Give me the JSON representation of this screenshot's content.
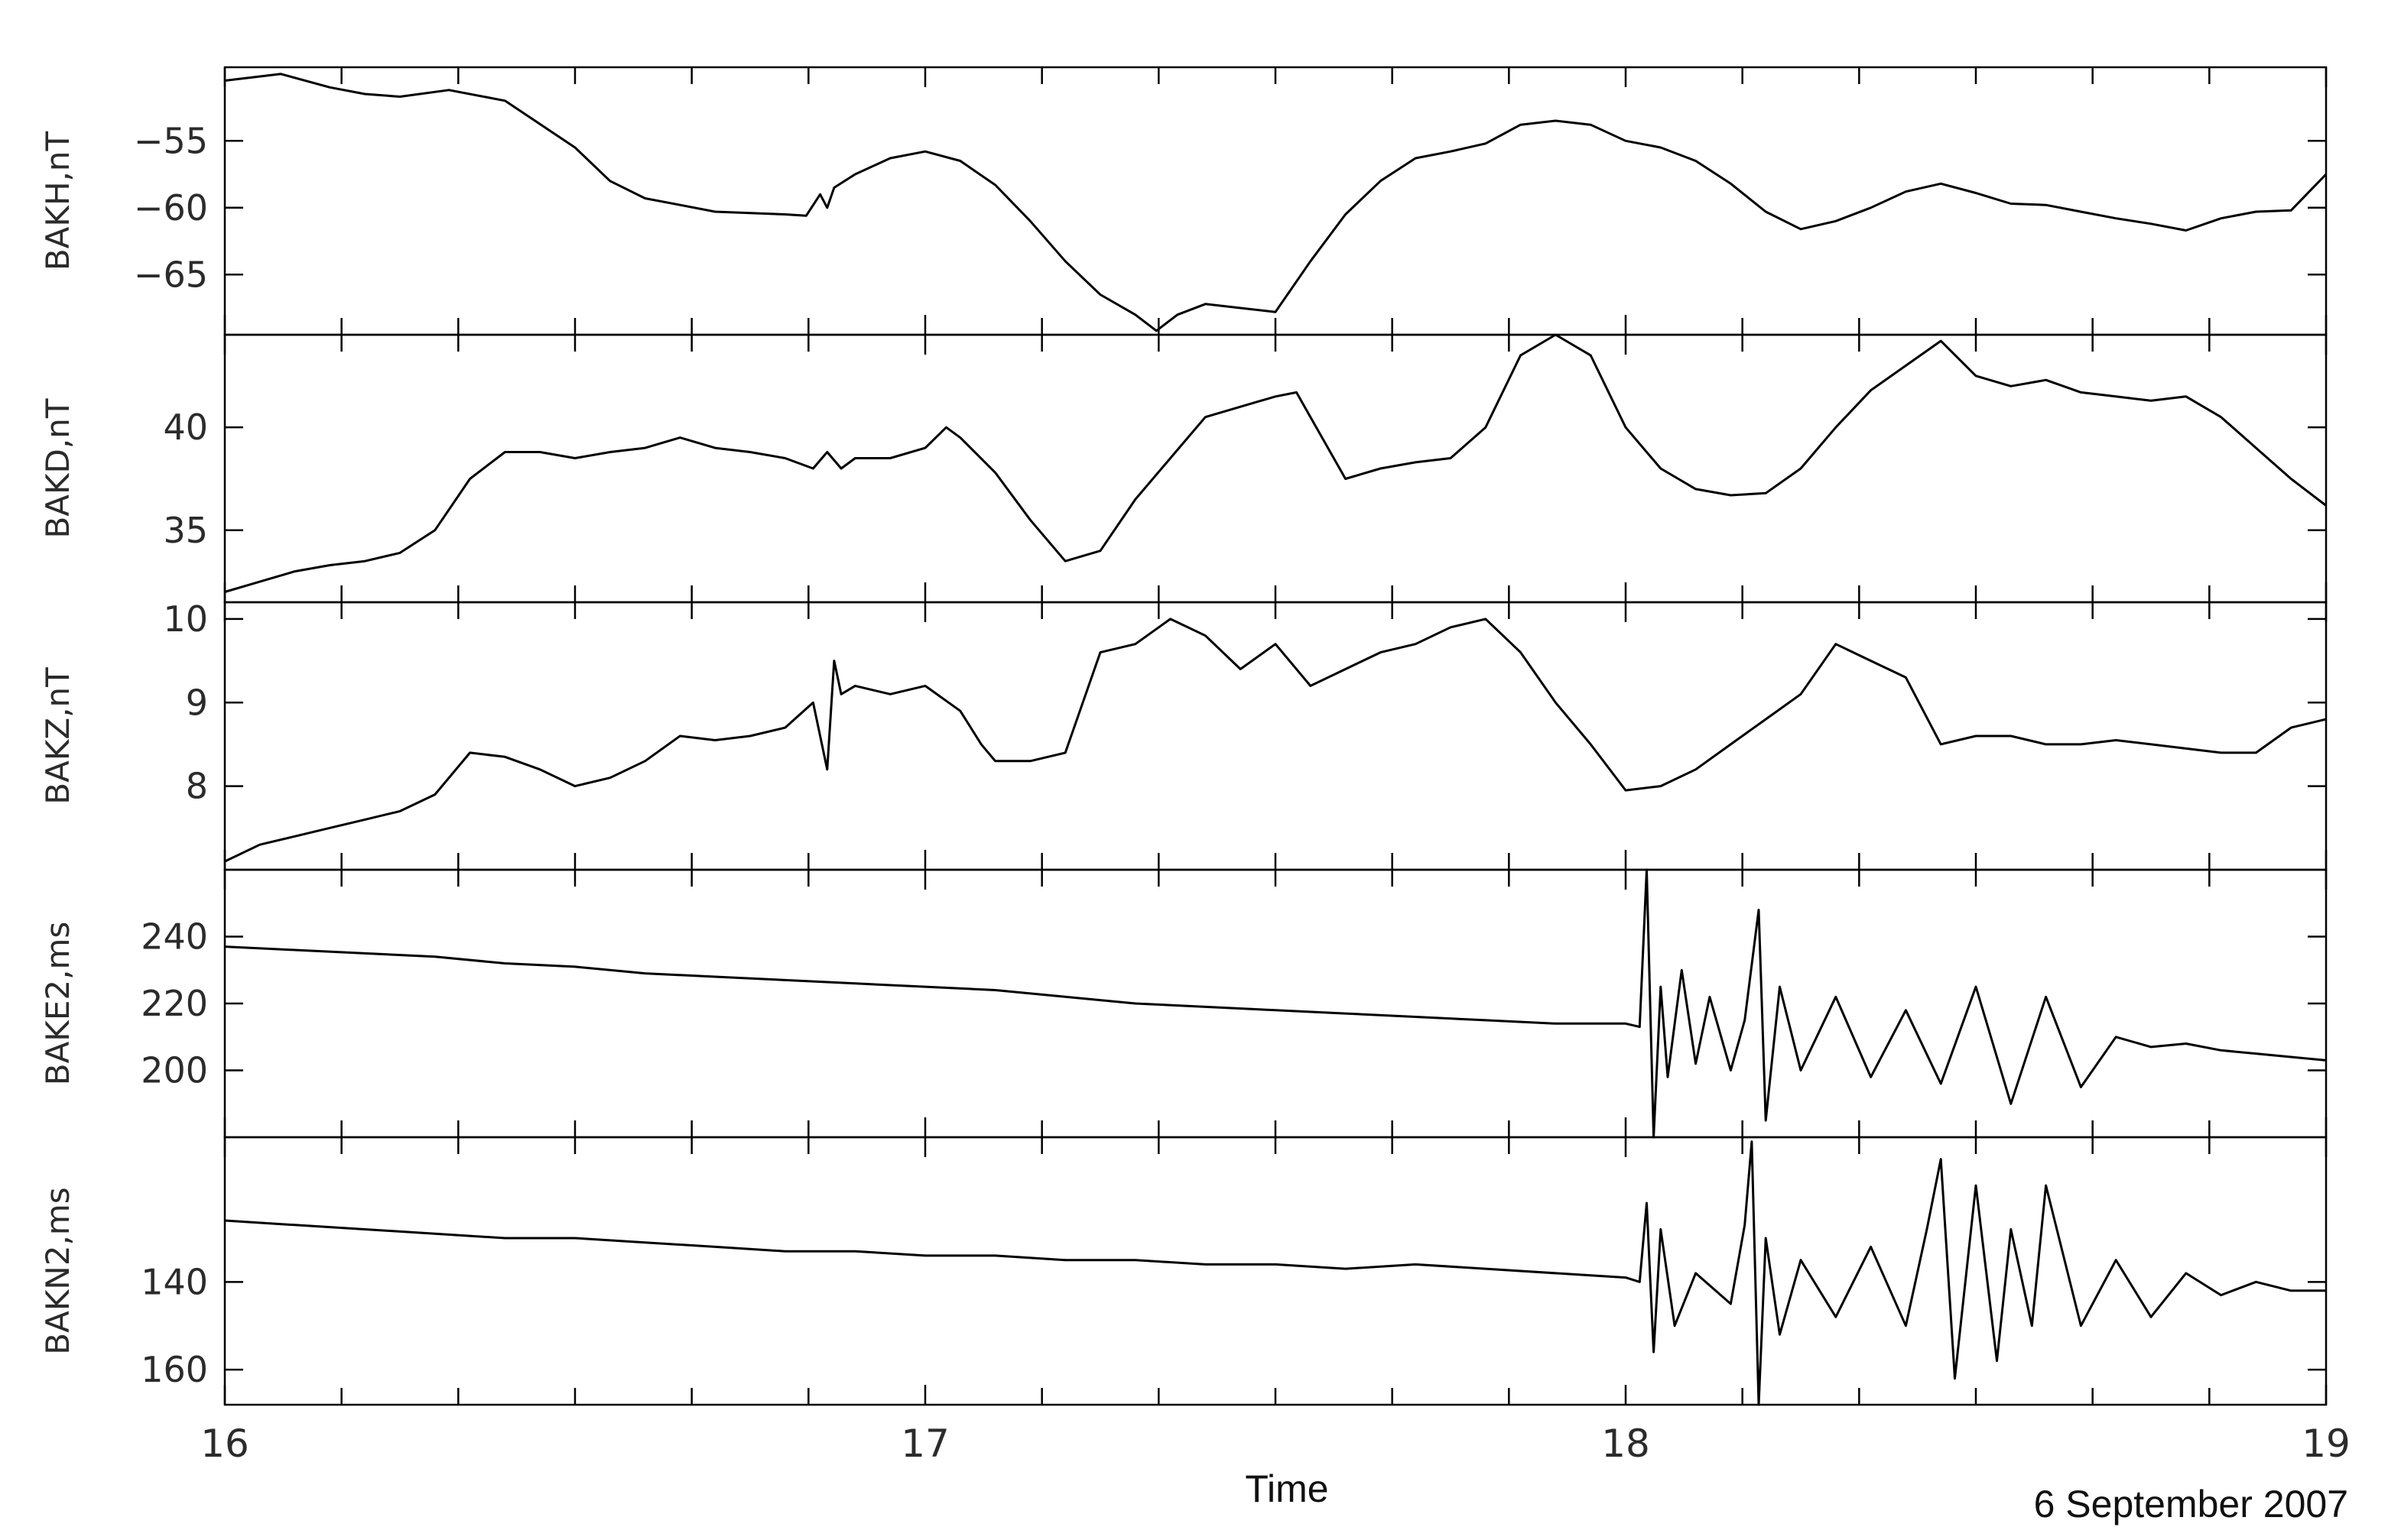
{
  "chart_data": {
    "type": "line",
    "date": "6 September 2007",
    "xlabel": "Time",
    "xlim": [
      16,
      19
    ],
    "xticks": [
      "16",
      "17",
      "18",
      "19"
    ],
    "grid": false,
    "line_color": "#000000",
    "panels": [
      {
        "ylabel": "BAKH,nT",
        "ylim": [
          -69.5,
          -49.5
        ],
        "yticks": [
          -55,
          -60,
          -65
        ],
        "ytick_labels": [
          "−55",
          "−60",
          "−65"
        ],
        "series": [
          {
            "x": [
              16.0,
              16.08,
              16.15,
              16.2,
              16.25,
              16.32,
              16.4,
              16.5,
              16.55,
              16.6,
              16.65,
              16.7,
              16.75,
              16.8,
              16.83,
              16.85,
              16.86,
              16.87,
              16.9,
              16.95,
              17.0,
              17.05,
              17.1,
              17.15,
              17.2,
              17.25,
              17.3,
              17.33,
              17.36,
              17.4,
              17.45,
              17.5,
              17.55,
              17.6,
              17.65,
              17.7,
              17.75,
              17.8,
              17.85,
              17.9,
              17.95,
              18.0,
              18.05,
              18.1,
              18.15,
              18.2,
              18.25,
              18.3,
              18.35,
              18.4,
              18.45,
              18.5,
              18.55,
              18.6,
              18.65,
              18.7,
              18.75,
              18.8,
              18.85,
              18.9,
              18.95,
              19.0
            ],
            "y": [
              -50.5,
              -50.0,
              -51.0,
              -51.5,
              -51.7,
              -51.2,
              -52.0,
              -55.5,
              -58.0,
              -59.3,
              -59.8,
              -60.3,
              -60.4,
              -60.5,
              -60.6,
              -59.0,
              -60.0,
              -58.5,
              -57.5,
              -56.3,
              -55.8,
              -56.5,
              -58.3,
              -61.0,
              -64.0,
              -66.5,
              -68.0,
              -69.2,
              -68.0,
              -67.2,
              -67.5,
              -67.8,
              -64.0,
              -60.5,
              -58.0,
              -56.3,
              -55.8,
              -55.2,
              -53.8,
              -53.5,
              -53.8,
              -55.0,
              -55.5,
              -56.5,
              -58.2,
              -60.3,
              -61.6,
              -61.0,
              -60.0,
              -58.8,
              -58.2,
              -58.9,
              -59.7,
              -59.8,
              -60.3,
              -60.8,
              -61.2,
              -61.7,
              -60.8,
              -60.3,
              -60.2,
              -57.5
            ]
          }
        ]
      },
      {
        "ylabel": "BAKD,nT",
        "ylim": [
          31.5,
          44.5
        ],
        "yticks": [
          40,
          35
        ],
        "ytick_labels": [
          "40",
          "35"
        ],
        "series": [
          {
            "x": [
              16.0,
              16.05,
              16.1,
              16.15,
              16.2,
              16.25,
              16.3,
              16.35,
              16.4,
              16.45,
              16.5,
              16.55,
              16.6,
              16.65,
              16.7,
              16.75,
              16.8,
              16.84,
              16.86,
              16.88,
              16.9,
              16.95,
              17.0,
              17.03,
              17.05,
              17.1,
              17.15,
              17.2,
              17.25,
              17.3,
              17.35,
              17.4,
              17.45,
              17.5,
              17.53,
              17.55,
              17.6,
              17.65,
              17.7,
              17.75,
              17.8,
              17.85,
              17.9,
              17.95,
              18.0,
              18.05,
              18.1,
              18.15,
              18.2,
              18.25,
              18.3,
              18.35,
              18.4,
              18.45,
              18.5,
              18.55,
              18.6,
              18.65,
              18.7,
              18.75,
              18.8,
              18.85,
              18.9,
              18.95,
              19.0
            ],
            "y": [
              32.0,
              32.5,
              33.0,
              33.3,
              33.5,
              33.9,
              35.0,
              37.5,
              38.8,
              38.8,
              38.5,
              38.8,
              39.0,
              39.5,
              39.0,
              38.8,
              38.5,
              38.0,
              38.8,
              38.0,
              38.5,
              38.5,
              39.0,
              40.0,
              39.5,
              37.8,
              35.5,
              33.5,
              34.0,
              36.5,
              38.5,
              40.5,
              41.0,
              41.5,
              41.7,
              40.5,
              37.5,
              38.0,
              38.3,
              38.5,
              40.0,
              43.5,
              44.5,
              43.5,
              40.0,
              38.0,
              37.0,
              36.7,
              36.8,
              38.0,
              40.0,
              41.8,
              43.0,
              44.2,
              42.5,
              42.0,
              42.3,
              41.7,
              41.5,
              41.3,
              41.5,
              40.5,
              39.0,
              37.5,
              36.2
            ]
          }
        ]
      },
      {
        "ylabel": "BAKZ,nT",
        "ylim": [
          7.0,
          10.2
        ],
        "yticks": [
          10,
          9,
          8
        ],
        "ytick_labels": [
          "10",
          "9",
          "8"
        ],
        "series": [
          {
            "x": [
              16.0,
              16.05,
              16.1,
              16.15,
              16.2,
              16.25,
              16.3,
              16.35,
              16.4,
              16.45,
              16.5,
              16.55,
              16.6,
              16.65,
              16.7,
              16.75,
              16.8,
              16.84,
              16.86,
              16.87,
              16.88,
              16.9,
              16.95,
              17.0,
              17.05,
              17.08,
              17.1,
              17.15,
              17.2,
              17.25,
              17.3,
              17.35,
              17.4,
              17.45,
              17.5,
              17.55,
              17.6,
              17.65,
              17.7,
              17.75,
              17.8,
              17.85,
              17.9,
              17.95,
              18.0,
              18.05,
              18.1,
              18.15,
              18.2,
              18.25,
              18.3,
              18.35,
              18.4,
              18.45,
              18.5,
              18.55,
              18.6,
              18.65,
              18.7,
              18.75,
              18.8,
              18.85,
              18.9,
              18.95,
              19.0
            ],
            "y": [
              7.1,
              7.3,
              7.4,
              7.5,
              7.6,
              7.7,
              7.9,
              8.4,
              8.35,
              8.2,
              8.0,
              8.1,
              8.3,
              8.6,
              8.55,
              8.6,
              8.7,
              9.0,
              8.2,
              9.5,
              9.1,
              9.2,
              9.1,
              9.2,
              8.9,
              8.5,
              8.3,
              8.3,
              8.4,
              9.6,
              9.7,
              10.0,
              9.8,
              9.4,
              9.7,
              9.2,
              9.4,
              9.6,
              9.7,
              9.9,
              10.0,
              9.6,
              9.0,
              8.5,
              7.95,
              8.0,
              8.2,
              8.5,
              8.8,
              9.1,
              9.7,
              9.5,
              9.3,
              8.5,
              8.6,
              8.6,
              8.5,
              8.5,
              8.55,
              8.5,
              8.45,
              8.4,
              8.4,
              8.7,
              8.8
            ]
          }
        ]
      },
      {
        "ylabel": "BAKE2,ms",
        "ylim": [
          180,
          260
        ],
        "yticks": [
          240,
          220,
          200
        ],
        "ytick_labels": [
          "240",
          "220",
          "200"
        ],
        "series": [
          {
            "x": [
              16.0,
              16.1,
              16.2,
              16.3,
              16.4,
              16.5,
              16.6,
              16.7,
              16.8,
              16.9,
              17.0,
              17.1,
              17.2,
              17.3,
              17.4,
              17.5,
              17.6,
              17.7,
              17.8,
              17.9,
              18.0,
              18.02,
              18.03,
              18.04,
              18.05,
              18.06,
              18.08,
              18.1,
              18.12,
              18.15,
              18.17,
              18.19,
              18.2,
              18.22,
              18.25,
              18.3,
              18.35,
              18.4,
              18.45,
              18.5,
              18.55,
              18.6,
              18.65,
              18.7,
              18.75,
              18.8,
              18.85,
              18.9,
              18.95,
              19.0
            ],
            "y": [
              237,
              236,
              235,
              234,
              232,
              231,
              229,
              228,
              227,
              226,
              225,
              224,
              222,
              220,
              219,
              218,
              217,
              216,
              215,
              214,
              214,
              213,
              260,
              180,
              225,
              198,
              230,
              202,
              222,
              200,
              215,
              248,
              185,
              225,
              200,
              222,
              198,
              218,
              196,
              225,
              190,
              222,
              195,
              210,
              207,
              208,
              206,
              205,
              204,
              203
            ]
          }
        ]
      },
      {
        "ylabel": "BAKN2,ms",
        "ylim": [
          107,
          168
        ],
        "invert_y": true,
        "yticks": [
          140,
          160
        ],
        "ytick_labels": [
          "140",
          "160"
        ],
        "series": [
          {
            "x": [
              16.0,
              16.1,
              16.2,
              16.3,
              16.4,
              16.5,
              16.6,
              16.7,
              16.8,
              16.9,
              17.0,
              17.1,
              17.2,
              17.3,
              17.4,
              17.5,
              17.6,
              17.7,
              17.8,
              17.9,
              18.0,
              18.02,
              18.03,
              18.04,
              18.05,
              18.07,
              18.1,
              18.15,
              18.17,
              18.18,
              18.19,
              18.2,
              18.22,
              18.25,
              18.3,
              18.35,
              18.4,
              18.43,
              18.45,
              18.47,
              18.5,
              18.53,
              18.55,
              18.58,
              18.6,
              18.65,
              18.7,
              18.75,
              18.8,
              18.85,
              18.9,
              18.95,
              19.0
            ],
            "y": [
              126,
              127,
              128,
              129,
              130,
              130,
              131,
              132,
              133,
              133,
              134,
              134,
              135,
              135,
              136,
              136,
              137,
              136,
              137,
              138,
              139,
              140,
              122,
              156,
              128,
              150,
              138,
              145,
              127,
              108,
              168,
              130,
              152,
              135,
              148,
              132,
              150,
              128,
              112,
              162,
              118,
              158,
              128,
              150,
              118,
              150,
              135,
              148,
              138,
              143,
              140,
              142,
              142
            ]
          }
        ]
      }
    ]
  }
}
